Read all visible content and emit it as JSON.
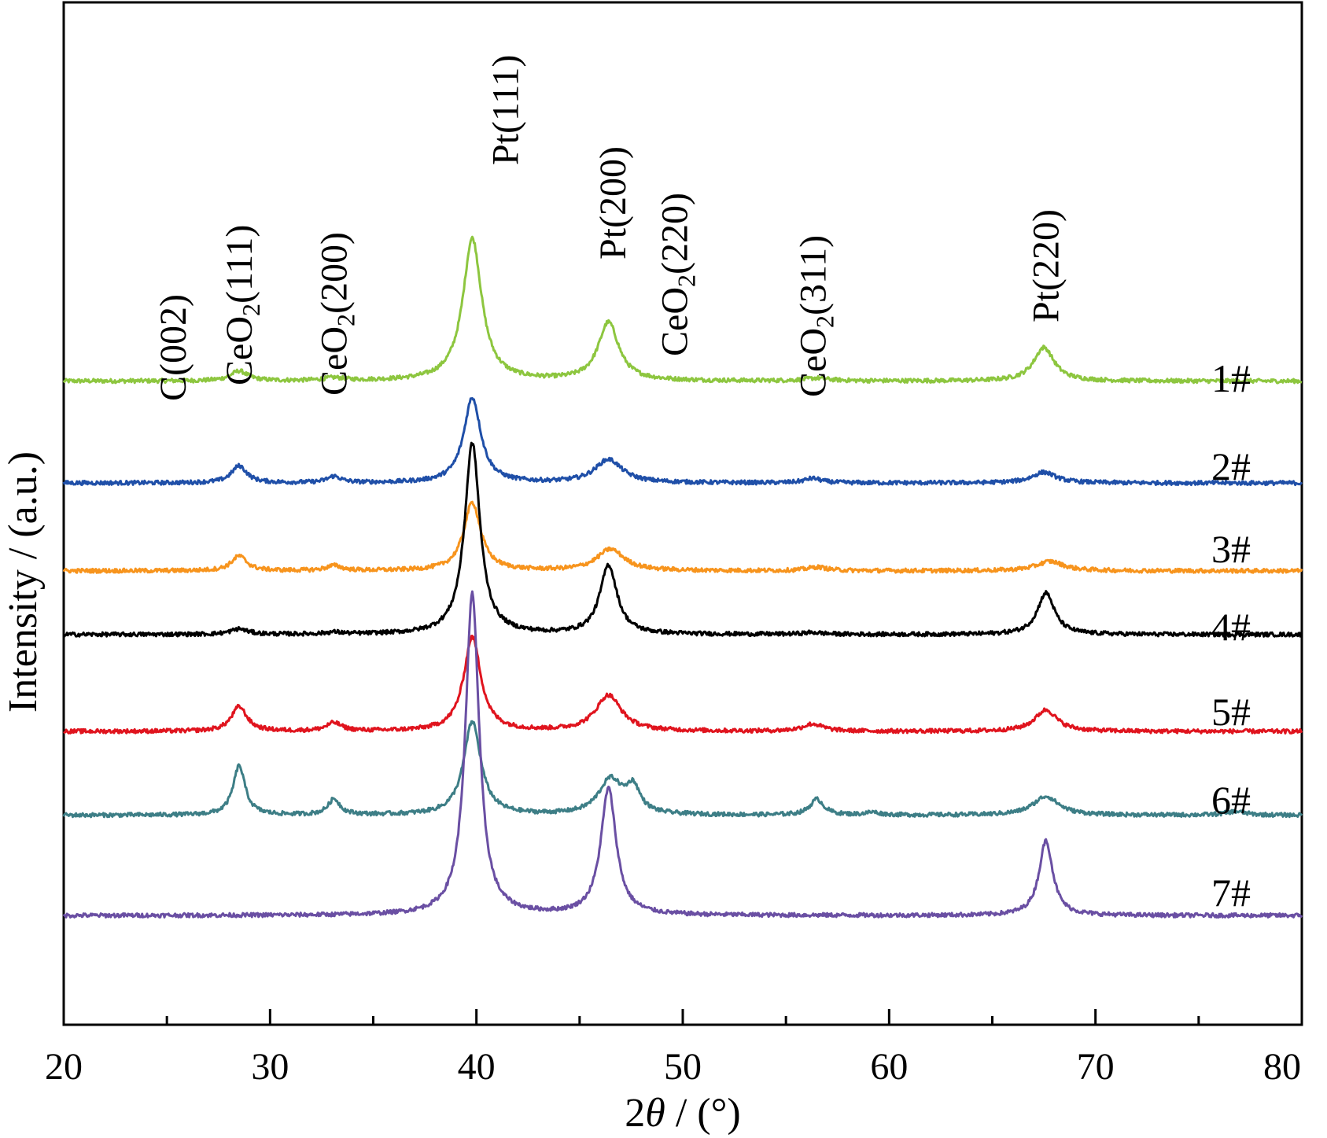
{
  "chart_data": {
    "type": "line",
    "xlabel": {
      "prefix": "2",
      "symbol": "θ",
      "suffix": " / (°)"
    },
    "ylabel": "Intensity / (a.u.)",
    "xlim": [
      20,
      80
    ],
    "x_major_ticks": [
      20,
      30,
      40,
      50,
      60,
      70,
      80
    ],
    "x_minor_ticks": [
      25,
      35,
      45,
      55,
      65,
      75
    ],
    "y_ticks_shown": false,
    "grid": false,
    "peak_labels": [
      {
        "base": "C(002)",
        "x": 25.3
      },
      {
        "base": "CeO",
        "sub": "2",
        "tail": "(111)",
        "x": 28.5
      },
      {
        "base": "CeO",
        "sub": "2",
        "tail": "(200)",
        "x": 33.1
      },
      {
        "base": "Pt(111)",
        "x": 41.4
      },
      {
        "base": "Pt(200)",
        "x": 46.6
      },
      {
        "base": "CeO",
        "sub": "2",
        "tail": "(220)",
        "x": 49.6
      },
      {
        "base": "CeO",
        "sub": "2",
        "tail": "(311)",
        "x": 56.3
      },
      {
        "base": "Pt(220)",
        "x": 67.6
      }
    ],
    "series": [
      {
        "name": "1#",
        "color": "#8dc63f",
        "baseline": 0.62,
        "peaks": [
          [
            28.5,
            0.22,
            0.5
          ],
          [
            33.1,
            0.06,
            0.6
          ],
          [
            39.8,
            3.18,
            0.55
          ],
          [
            46.4,
            1.3,
            0.6
          ],
          [
            56.5,
            0.06,
            0.7
          ],
          [
            67.5,
            0.75,
            0.6
          ]
        ]
      },
      {
        "name": "2#",
        "color": "#1f4fa8",
        "baseline": 0.4,
        "peaks": [
          [
            28.5,
            0.38,
            0.45
          ],
          [
            33.1,
            0.14,
            0.4
          ],
          [
            39.8,
            1.9,
            0.5
          ],
          [
            46.4,
            0.52,
            0.8
          ],
          [
            56.3,
            0.1,
            0.5
          ],
          [
            67.5,
            0.24,
            0.7
          ]
        ]
      },
      {
        "name": "3#",
        "color": "#f7941d",
        "baseline": 0.3,
        "peaks": [
          [
            28.5,
            0.33,
            0.45
          ],
          [
            33.1,
            0.11,
            0.45
          ],
          [
            39.8,
            1.52,
            0.5
          ],
          [
            46.5,
            0.48,
            0.8
          ],
          [
            56.5,
            0.08,
            0.6
          ],
          [
            67.8,
            0.21,
            0.8
          ]
        ]
      },
      {
        "name": "4#",
        "color": "#000000",
        "baseline": 0.58,
        "peaks": [
          [
            28.5,
            0.12,
            0.5
          ],
          [
            33.1,
            0.04,
            0.5
          ],
          [
            39.8,
            4.27,
            0.45
          ],
          [
            46.4,
            1.54,
            0.5
          ],
          [
            56.3,
            0.04,
            0.6
          ],
          [
            67.6,
            0.93,
            0.5
          ]
        ]
      },
      {
        "name": "5#",
        "color": "#e0141e",
        "baseline": 0.35,
        "peaks": [
          [
            28.5,
            0.55,
            0.45
          ],
          [
            33.1,
            0.18,
            0.45
          ],
          [
            39.8,
            2.1,
            0.5
          ],
          [
            46.4,
            0.8,
            0.75
          ],
          [
            56.3,
            0.16,
            0.6
          ],
          [
            67.6,
            0.48,
            0.65
          ]
        ]
      },
      {
        "name": "6#",
        "color": "#3d7e86",
        "baseline": 0.48,
        "peaks": [
          [
            28.5,
            1.1,
            0.35
          ],
          [
            33.1,
            0.35,
            0.35
          ],
          [
            39.8,
            2.08,
            0.5
          ],
          [
            46.5,
            0.78,
            0.7
          ],
          [
            47.6,
            0.55,
            0.4
          ],
          [
            56.5,
            0.35,
            0.4
          ],
          [
            59.2,
            0.06,
            0.4
          ],
          [
            67.6,
            0.42,
            0.75
          ],
          [
            76.8,
            0.08,
            0.6
          ]
        ]
      },
      {
        "name": "7#",
        "color": "#6a4fa3",
        "baseline": 0.33,
        "peaks": [
          [
            39.8,
            7.18,
            0.4
          ],
          [
            46.4,
            2.82,
            0.45
          ],
          [
            67.6,
            1.67,
            0.4
          ]
        ]
      }
    ]
  }
}
